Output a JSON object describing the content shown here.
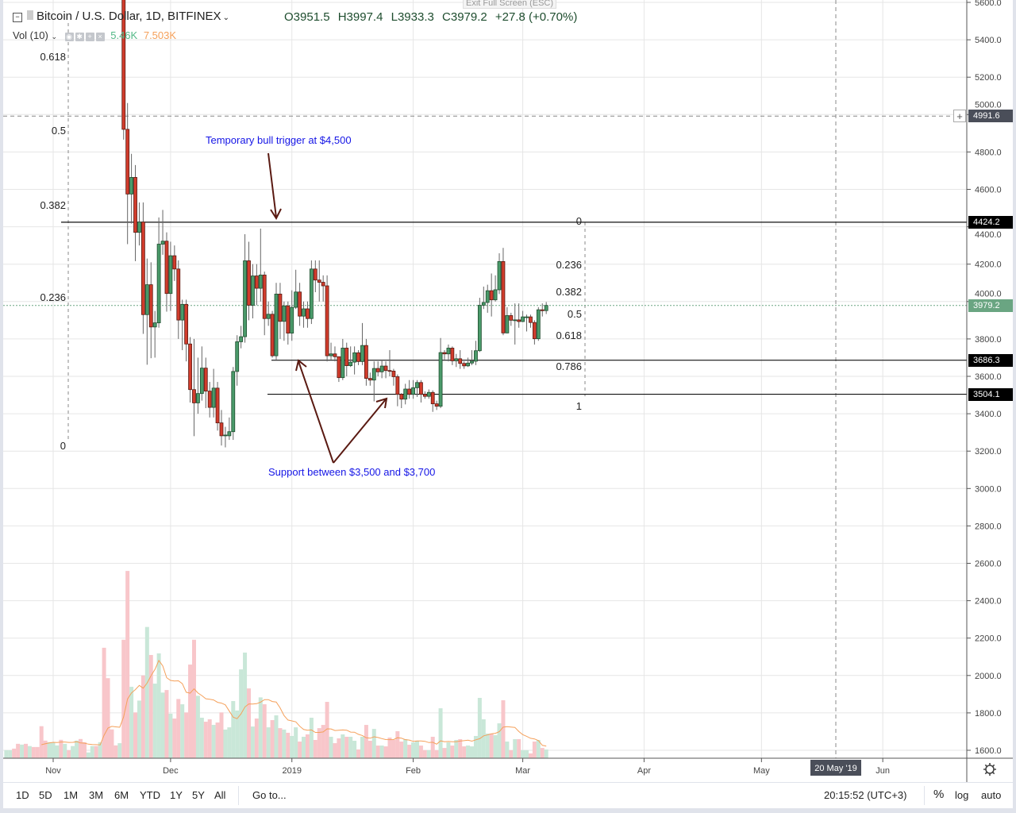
{
  "header": {
    "symbol": "Bitcoin / U.S. Dollar, 1D, BITFINEX",
    "open": "O3951.5",
    "high": "H3997.4",
    "low": "L3933.3",
    "close": "C3979.2",
    "change": "+27.8 (+0.70%)",
    "tooltip": "Exit Full Screen (ESC)",
    "vol_label": "Vol (10)",
    "vol_value": "5.46K",
    "vol_ma": "7.503K"
  },
  "price_axis": {
    "ticks": [
      "5600.0",
      "5400.0",
      "5200.0",
      "5000.0",
      "4800.0",
      "4600.0",
      "4400.0",
      "4200.0",
      "4000.0",
      "3800.0",
      "3600.0",
      "3400.0",
      "3200.0",
      "3000.0",
      "2800.0",
      "2600.0",
      "2400.0",
      "2200.0",
      "2000.0",
      "1800.0",
      "1600.0"
    ],
    "crosshair_label": "4991.6",
    "level_labels": [
      {
        "text": "4424.2",
        "style": "black"
      },
      {
        "text": "3979.2",
        "style": "green"
      },
      {
        "text": "3686.3",
        "style": "black"
      },
      {
        "text": "3504.1",
        "style": "black"
      }
    ]
  },
  "time_axis": {
    "labels": [
      {
        "text": "Nov",
        "date": "2018-11-01"
      },
      {
        "text": "Dec",
        "date": "2018-12-01"
      },
      {
        "text": "2019",
        "date": "2019-01-01"
      },
      {
        "text": "Feb",
        "date": "2019-02-01"
      },
      {
        "text": "Mar",
        "date": "2019-03-01"
      },
      {
        "text": "Apr",
        "date": "2019-04-01"
      },
      {
        "text": "May",
        "date": "2019-05-01"
      },
      {
        "text": "Jun",
        "date": "2019-06-01"
      }
    ],
    "crosshair_label": "20 May '19",
    "crosshair_date": "2019-05-20"
  },
  "annotations": {
    "bull_trigger": "Temporary bull trigger at $4,500",
    "support": "Support between $3,500 and $3,700"
  },
  "fib_left": [
    {
      "label": "0.618",
      "price": 5303
    },
    {
      "label": "0.5",
      "price": 4906
    },
    {
      "label": "0.382",
      "price": 4509
    },
    {
      "label": "0.236",
      "price": 4018
    },
    {
      "label": "0",
      "price": 3224
    }
  ],
  "fib_right": [
    {
      "label": "0",
      "price": 4424
    },
    {
      "label": "0.236",
      "price": 4190
    },
    {
      "label": "0.382",
      "price": 4046
    },
    {
      "label": "0.5",
      "price": 3929
    },
    {
      "label": "0.618",
      "price": 3812
    },
    {
      "label": "0.786",
      "price": 3646
    },
    {
      "label": "1",
      "price": 3434
    }
  ],
  "toolbar": {
    "ranges": [
      "1D",
      "5D",
      "1M",
      "3M",
      "6M",
      "YTD",
      "1Y",
      "5Y",
      "All"
    ],
    "goto": "Go to...",
    "clock": "20:15:52 (UTC+3)",
    "percent": "%",
    "log": "log",
    "auto": "auto"
  },
  "colors": {
    "up": "#4a9a6a",
    "up_border": "#1e4d2e",
    "down": "#d13c2c",
    "down_border": "#5a1a12",
    "vol_up": "#c9e7d8",
    "vol_down": "#f8c6ca",
    "vol_ma": "#f5a05a",
    "annotation_text": "#1515e6",
    "arrow": "#5a1a12",
    "last_price": "#6aa582"
  },
  "chart_data": {
    "type": "candlestick",
    "ylim": [
      1600,
      5600
    ],
    "grid": true,
    "horizontal_lines": [
      4424.2,
      3686.3,
      3504.1
    ],
    "last_price": 3979.2,
    "crosshair_price": 4991.6,
    "volume_ma_period": 10,
    "volume_unit": "K",
    "volume_before": [
      [
        "2018-10-20",
        5,
        "up"
      ],
      [
        "2018-10-21",
        5,
        "up"
      ],
      [
        "2018-10-22",
        6,
        "down"
      ],
      [
        "2018-10-23",
        9,
        "down"
      ],
      [
        "2018-10-24",
        8.5,
        "up"
      ],
      [
        "2018-10-25",
        9,
        "down"
      ],
      [
        "2018-10-26",
        7.6,
        "up"
      ],
      [
        "2018-10-27",
        7,
        "down"
      ],
      [
        "2018-10-28",
        7,
        "down"
      ],
      [
        "2018-10-29",
        20,
        "down"
      ],
      [
        "2018-10-30",
        11,
        "down"
      ],
      [
        "2018-10-31",
        10,
        "up"
      ],
      [
        "2018-11-01",
        10,
        "up"
      ],
      [
        "2018-11-02",
        8,
        "up"
      ],
      [
        "2018-11-03",
        11.5,
        "down"
      ],
      [
        "2018-11-04",
        9,
        "up"
      ],
      [
        "2018-11-05",
        5,
        "down"
      ],
      [
        "2018-11-06",
        7.6,
        "up"
      ],
      [
        "2018-11-07",
        11,
        "up"
      ],
      [
        "2018-11-08",
        12,
        "down"
      ],
      [
        "2018-11-09",
        10,
        "down"
      ],
      [
        "2018-11-10",
        3.6,
        "up"
      ],
      [
        "2018-11-11",
        7.6,
        "up"
      ],
      [
        "2018-11-12",
        7.6,
        "down"
      ],
      [
        "2018-11-13",
        10,
        "up"
      ],
      [
        "2018-11-14",
        69,
        "down"
      ],
      [
        "2018-11-15",
        50,
        "down"
      ],
      [
        "2018-11-16",
        18,
        "down"
      ],
      [
        "2018-11-17",
        8,
        "down"
      ],
      [
        "2018-11-18",
        9.4,
        "up"
      ]
    ],
    "candles": [
      [
        "2018-11-19",
        5620,
        5650,
        4866,
        4921,
        74
      ],
      [
        "2018-11-20",
        4921,
        5062,
        4307,
        4575,
        117
      ],
      [
        "2018-11-21",
        4575,
        4790,
        4417,
        4664,
        44.6
      ],
      [
        "2018-11-22",
        4664,
        4730,
        4216,
        4370,
        28.6
      ],
      [
        "2018-11-23",
        4370,
        4530,
        4300,
        4425,
        36
      ],
      [
        "2018-11-24",
        4425,
        4530,
        3827,
        3930,
        51.7
      ],
      [
        "2018-11-25",
        3930,
        4230,
        3662,
        4090,
        82
      ],
      [
        "2018-11-26",
        4090,
        4210,
        3697,
        3864,
        64.5
      ],
      [
        "2018-11-27",
        3864,
        3950,
        3700,
        3886,
        46.6
      ],
      [
        "2018-11-28",
        3886,
        4450,
        3860,
        4307,
        65.5
      ],
      [
        "2018-11-29",
        4307,
        4490,
        4250,
        4323,
        41
      ],
      [
        "2018-11-30",
        4323,
        4370,
        3946,
        4043,
        42.6
      ],
      [
        "2018-12-01",
        4043,
        4320,
        3950,
        4245,
        27.8
      ],
      [
        "2018-12-02",
        4245,
        4300,
        4110,
        4174,
        24.8
      ],
      [
        "2018-12-03",
        4174,
        4220,
        3800,
        3901,
        37
      ],
      [
        "2018-12-04",
        3901,
        4010,
        3740,
        3985,
        33.7
      ],
      [
        "2018-12-05",
        3985,
        4010,
        3680,
        3773,
        28.6
      ],
      [
        "2018-12-06",
        3773,
        3810,
        3460,
        3529,
        58.5
      ],
      [
        "2018-12-07",
        3529,
        3800,
        3280,
        3458,
        74
      ],
      [
        "2018-12-08",
        3458,
        3700,
        3400,
        3508,
        39
      ],
      [
        "2018-12-09",
        3508,
        3760,
        3470,
        3644,
        25.3
      ],
      [
        "2018-12-10",
        3644,
        3700,
        3430,
        3521,
        22.8
      ],
      [
        "2018-12-11",
        3521,
        3570,
        3380,
        3434,
        24.3
      ],
      [
        "2018-12-12",
        3434,
        3640,
        3380,
        3537,
        20.8
      ],
      [
        "2018-12-13",
        3537,
        3570,
        3310,
        3351,
        22.3
      ],
      [
        "2018-12-14",
        3351,
        3420,
        3230,
        3282,
        28.6
      ],
      [
        "2018-12-15",
        3282,
        3330,
        3220,
        3286,
        17.9
      ],
      [
        "2018-12-16",
        3282,
        3380,
        3260,
        3304,
        19.3
      ],
      [
        "2018-12-17",
        3304,
        3650,
        3260,
        3626,
        35.7
      ],
      [
        "2018-12-18",
        3626,
        3820,
        3550,
        3785,
        29.8
      ],
      [
        "2018-12-19",
        3785,
        3870,
        3750,
        3812,
        55.5
      ],
      [
        "2018-12-20",
        3812,
        4360,
        3780,
        4218,
        66
      ],
      [
        "2018-12-21",
        4218,
        4320,
        3900,
        3980,
        43.6
      ],
      [
        "2018-12-22",
        3980,
        4200,
        3910,
        4137,
        19.8
      ],
      [
        "2018-12-23",
        4137,
        4200,
        3980,
        4071,
        24.8
      ],
      [
        "2018-12-24",
        4071,
        4390,
        4000,
        4142,
        38
      ],
      [
        "2018-12-25",
        4142,
        4160,
        3820,
        3909,
        33.7
      ],
      [
        "2018-12-26",
        3909,
        4000,
        3870,
        3932,
        19.3
      ],
      [
        "2018-12-27",
        3932,
        3950,
        3700,
        3710,
        23.8
      ],
      [
        "2018-12-28",
        3710,
        4100,
        3690,
        4040,
        26.8
      ],
      [
        "2018-12-29",
        4040,
        4100,
        3800,
        3894,
        18.8
      ],
      [
        "2018-12-30",
        3894,
        4000,
        3790,
        3977,
        17.9
      ],
      [
        "2018-12-31",
        3977,
        4000,
        3770,
        3831,
        15.9
      ],
      [
        "2019-01-01",
        3831,
        4060,
        3790,
        3969,
        13.9
      ],
      [
        "2019-01-02",
        3969,
        4170,
        3960,
        4051,
        19.3
      ],
      [
        "2019-01-03",
        4051,
        4100,
        3870,
        3922,
        10.4
      ],
      [
        "2019-01-04",
        3922,
        4000,
        3860,
        3961,
        13.4
      ],
      [
        "2019-01-05",
        3961,
        4000,
        3860,
        3909,
        14.9
      ],
      [
        "2019-01-06",
        3909,
        4220,
        3880,
        4174,
        25.3
      ],
      [
        "2019-01-07",
        4174,
        4220,
        4050,
        4115,
        11.4
      ],
      [
        "2019-01-08",
        4115,
        4220,
        4000,
        4103,
        18.8
      ],
      [
        "2019-01-09",
        4103,
        4140,
        4000,
        4084,
        20.8
      ],
      [
        "2019-01-10",
        4084,
        4140,
        3680,
        3710,
        35.2
      ],
      [
        "2019-01-11",
        3710,
        3780,
        3690,
        3720,
        13.4
      ],
      [
        "2019-01-12",
        3720,
        3760,
        3680,
        3705,
        9.4
      ],
      [
        "2019-01-13",
        3705,
        3700,
        3570,
        3593,
        12.4
      ],
      [
        "2019-01-14",
        3593,
        3800,
        3580,
        3751,
        14.9
      ],
      [
        "2019-01-15",
        3751,
        3780,
        3600,
        3657,
        13.4
      ],
      [
        "2019-01-16",
        3657,
        3760,
        3650,
        3676,
        13.4
      ],
      [
        "2019-01-17",
        3676,
        3760,
        3610,
        3726,
        10.9
      ],
      [
        "2019-01-18",
        3726,
        3740,
        3660,
        3679,
        5.5
      ],
      [
        "2019-01-19",
        3679,
        3885,
        3660,
        3765,
        13.4
      ],
      [
        "2019-01-20",
        3765,
        3800,
        3550,
        3589,
        20.8
      ],
      [
        "2019-01-21",
        3589,
        3620,
        3550,
        3580,
        10.9
      ],
      [
        "2019-01-22",
        3580,
        3680,
        3466,
        3642,
        18.3
      ],
      [
        "2019-01-23",
        3642,
        3680,
        3600,
        3624,
        7.9
      ],
      [
        "2019-01-24",
        3624,
        3690,
        3590,
        3655,
        7.9
      ],
      [
        "2019-01-25",
        3655,
        3680,
        3590,
        3631,
        7.4
      ],
      [
        "2019-01-26",
        3631,
        3740,
        3600,
        3628,
        12.9
      ],
      [
        "2019-01-27",
        3628,
        3640,
        3550,
        3598,
        11.4
      ],
      [
        "2019-01-28",
        3598,
        3610,
        3440,
        3504,
        16.9
      ],
      [
        "2019-01-29",
        3504,
        3510,
        3430,
        3478,
        10.4
      ],
      [
        "2019-01-30",
        3478,
        3560,
        3450,
        3532,
        11.9
      ],
      [
        "2019-01-31",
        3532,
        3580,
        3480,
        3504,
        8.4
      ],
      [
        "2019-02-01",
        3504,
        3580,
        3480,
        3539,
        9.9
      ],
      [
        "2019-02-02",
        3539,
        3580,
        3490,
        3567,
        10.9
      ],
      [
        "2019-02-03",
        3567,
        3580,
        3460,
        3504,
        7.9
      ],
      [
        "2019-02-04",
        3504,
        3520,
        3480,
        3493,
        5
      ],
      [
        "2019-02-05",
        3493,
        3530,
        3480,
        3514,
        5
      ],
      [
        "2019-02-06",
        3514,
        3525,
        3410,
        3453,
        13.4
      ],
      [
        "2019-02-07",
        3453,
        3470,
        3420,
        3440,
        5
      ],
      [
        "2019-02-08",
        3440,
        3805,
        3430,
        3727,
        31.2
      ],
      [
        "2019-02-09",
        3727,
        3740,
        3690,
        3720,
        6.4
      ],
      [
        "2019-02-10",
        3720,
        3770,
        3680,
        3751,
        9.9
      ],
      [
        "2019-02-11",
        3751,
        3760,
        3660,
        3683,
        7.9
      ],
      [
        "2019-02-12",
        3683,
        3720,
        3650,
        3694,
        11.4
      ],
      [
        "2019-02-13",
        3694,
        3740,
        3640,
        3669,
        11.9
      ],
      [
        "2019-02-14",
        3669,
        3680,
        3640,
        3656,
        7.4
      ],
      [
        "2019-02-15",
        3656,
        3700,
        3650,
        3671,
        7.9
      ],
      [
        "2019-02-16",
        3671,
        3740,
        3660,
        3681,
        7.4
      ],
      [
        "2019-02-17",
        3681,
        3790,
        3660,
        3737,
        13.9
      ],
      [
        "2019-02-18",
        3737,
        4020,
        3730,
        3980,
        37.7
      ],
      [
        "2019-02-19",
        3980,
        4080,
        3960,
        3995,
        24.3
      ],
      [
        "2019-02-20",
        3995,
        4090,
        3940,
        4058,
        15.4
      ],
      [
        "2019-02-21",
        4058,
        4150,
        3920,
        4009,
        15.4
      ],
      [
        "2019-02-22",
        4009,
        4140,
        4000,
        4063,
        14.4
      ],
      [
        "2019-02-23",
        4063,
        4258,
        4040,
        4214,
        21.8
      ],
      [
        "2019-02-24",
        4214,
        4287,
        3820,
        3832,
        36.2
      ],
      [
        "2019-02-25",
        3832,
        3970,
        3830,
        3925,
        10.4
      ],
      [
        "2019-02-26",
        3925,
        3940,
        3870,
        3900,
        5
      ],
      [
        "2019-02-27",
        3900,
        3990,
        3770,
        3902,
        11.9
      ],
      [
        "2019-02-28",
        3902,
        3990,
        3860,
        3893,
        11.9
      ],
      [
        "2019-03-01",
        3893,
        3950,
        3890,
        3918,
        5
      ],
      [
        "2019-03-02",
        3918,
        3930,
        3840,
        3918,
        5
      ],
      [
        "2019-03-03",
        3918,
        3930,
        3860,
        3888,
        3
      ],
      [
        "2019-03-04",
        3888,
        3900,
        3770,
        3801,
        10.4
      ],
      [
        "2019-03-05",
        3801,
        3970,
        3790,
        3956,
        11.4
      ],
      [
        "2019-03-06",
        3956,
        3990,
        3920,
        3951,
        6.4
      ],
      [
        "2019-03-07",
        3951.5,
        3997.4,
        3933.3,
        3979.2,
        5.46
      ]
    ]
  }
}
